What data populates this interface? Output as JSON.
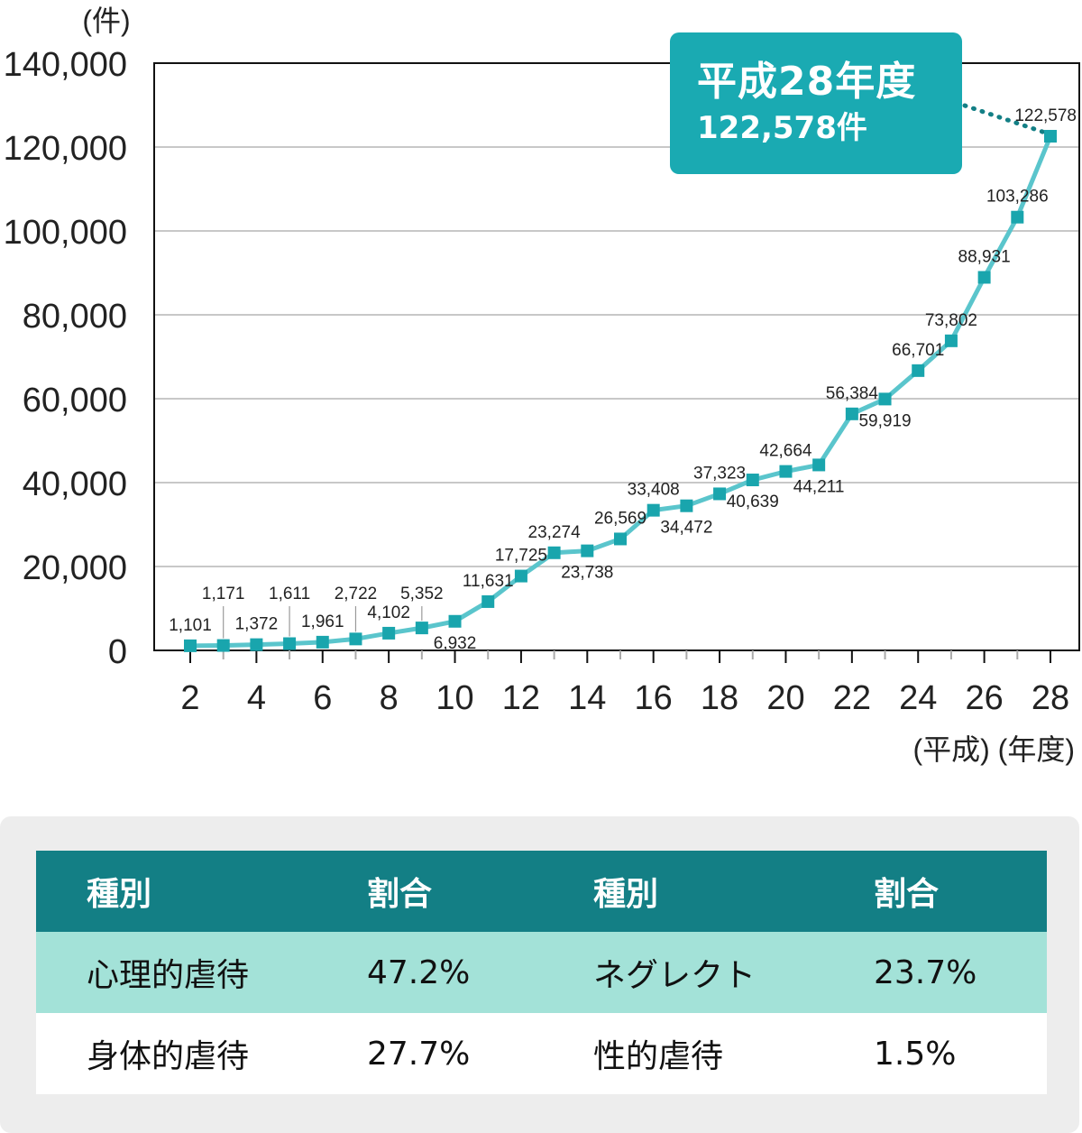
{
  "chart_data": {
    "type": "line",
    "y_unit": "(件)",
    "x_unit": "(平成) (年度)",
    "ylim": [
      0,
      140000
    ],
    "y_ticks": [
      "0",
      "20,000",
      "40,000",
      "60,000",
      "80,000",
      "100,000",
      "120,000",
      "140,000"
    ],
    "x_ticks": [
      "2",
      "4",
      "6",
      "8",
      "10",
      "12",
      "14",
      "16",
      "18",
      "20",
      "22",
      "24",
      "26",
      "28"
    ],
    "grid": true,
    "x": [
      2,
      3,
      4,
      5,
      6,
      7,
      8,
      9,
      10,
      11,
      12,
      13,
      14,
      15,
      16,
      17,
      18,
      19,
      20,
      21,
      22,
      23,
      24,
      25,
      26,
      27,
      28
    ],
    "values": [
      1101,
      1171,
      1372,
      1611,
      1961,
      2722,
      4102,
      5352,
      6932,
      11631,
      17725,
      23274,
      23738,
      26569,
      33408,
      34472,
      37323,
      40639,
      42664,
      44211,
      56384,
      59919,
      66701,
      73802,
      88931,
      103286,
      122578
    ],
    "data_labels": [
      {
        "x": 2,
        "text": "1,101",
        "pos": "above"
      },
      {
        "x": 3,
        "text": "1,171",
        "pos": "above-leader"
      },
      {
        "x": 4,
        "text": "1,372",
        "pos": "above"
      },
      {
        "x": 5,
        "text": "1,611",
        "pos": "above-leader"
      },
      {
        "x": 6,
        "text": "1,961",
        "pos": "above"
      },
      {
        "x": 7,
        "text": "2,722",
        "pos": "above-leader"
      },
      {
        "x": 8,
        "text": "4,102",
        "pos": "above"
      },
      {
        "x": 9,
        "text": "5,352",
        "pos": "above-leader"
      },
      {
        "x": 10,
        "text": "6,932",
        "pos": "below"
      },
      {
        "x": 11,
        "text": "11,631",
        "pos": "above"
      },
      {
        "x": 12,
        "text": "17,725",
        "pos": "above"
      },
      {
        "x": 13,
        "text": "23,274",
        "pos": "above"
      },
      {
        "x": 14,
        "text": "23,738",
        "pos": "below"
      },
      {
        "x": 15,
        "text": "26,569",
        "pos": "above"
      },
      {
        "x": 16,
        "text": "33,408",
        "pos": "above"
      },
      {
        "x": 17,
        "text": "34,472",
        "pos": "below"
      },
      {
        "x": 18,
        "text": "37,323",
        "pos": "above"
      },
      {
        "x": 19,
        "text": "40,639",
        "pos": "below"
      },
      {
        "x": 20,
        "text": "42,664",
        "pos": "above"
      },
      {
        "x": 21,
        "text": "44,211",
        "pos": "below"
      },
      {
        "x": 22,
        "text": "56,384",
        "pos": "above"
      },
      {
        "x": 23,
        "text": "59,919",
        "pos": "below"
      },
      {
        "x": 24,
        "text": "66,701",
        "pos": "above"
      },
      {
        "x": 25,
        "text": "73,802",
        "pos": "above"
      },
      {
        "x": 26,
        "text": "88,931",
        "pos": "above"
      },
      {
        "x": 27,
        "text": "103,286",
        "pos": "above"
      },
      {
        "x": 28,
        "text": "122,578",
        "pos": "above"
      }
    ],
    "callout": {
      "line1": "平成28年度",
      "line2": "122,578件"
    }
  },
  "colors": {
    "line": "#5ac5cc",
    "marker": "#19a5ad",
    "grid": "#c8c8c8",
    "callout": "#1aaab2",
    "table_header": "#137f85",
    "table_row": "#a3e2d8"
  },
  "table": {
    "headers": [
      "種別",
      "割合",
      "種別",
      "割合"
    ],
    "rows": [
      [
        "心理的虐待",
        "47.2%",
        "ネグレクト",
        "23.7%"
      ],
      [
        "身体的虐待",
        "27.7%",
        "性的虐待",
        "1.5%"
      ]
    ]
  }
}
